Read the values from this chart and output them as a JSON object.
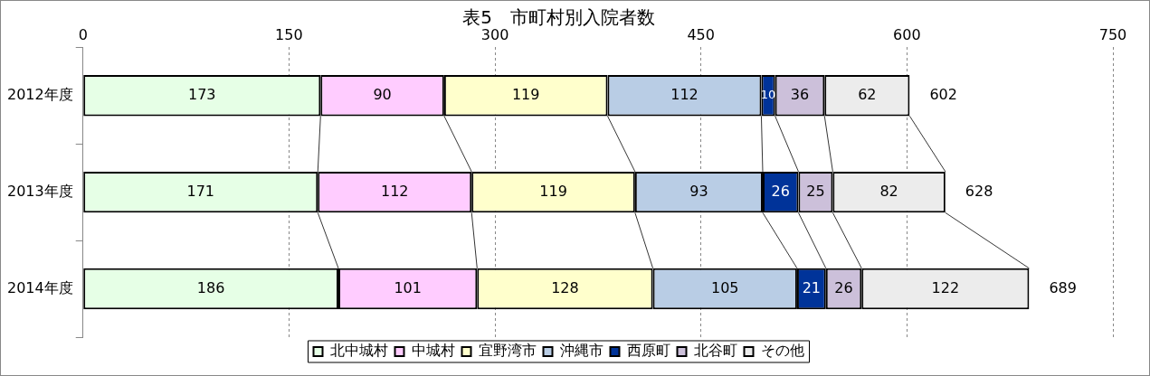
{
  "chart_data": {
    "type": "bar",
    "orientation": "horizontal",
    "stacked": true,
    "title": "表5　市町村別入院者数",
    "categories": [
      "2012年度",
      "2013年度",
      "2014年度"
    ],
    "series": [
      {
        "name": "北中城村",
        "color": "#e6ffe6",
        "values": [
          173,
          171,
          186
        ]
      },
      {
        "name": "中城村",
        "color": "#ffccff",
        "values": [
          90,
          112,
          101
        ]
      },
      {
        "name": "宜野湾市",
        "color": "#ffffcc",
        "values": [
          119,
          119,
          128
        ]
      },
      {
        "name": "沖縄市",
        "color": "#b9cde5",
        "values": [
          112,
          93,
          105
        ]
      },
      {
        "name": "西原町",
        "color": "#003399",
        "values": [
          10,
          26,
          21
        ]
      },
      {
        "name": "北谷町",
        "color": "#ccc0da",
        "values": [
          36,
          25,
          26
        ]
      },
      {
        "name": "その他",
        "color": "#ececec",
        "values": [
          62,
          82,
          122
        ]
      }
    ],
    "xlim": [
      0,
      750
    ],
    "xticks": [
      0,
      150,
      300,
      450,
      600,
      750
    ],
    "grid": "x",
    "legend": "bottom",
    "data_labels": true,
    "totals": [
      "602",
      "628",
      "689"
    ]
  }
}
